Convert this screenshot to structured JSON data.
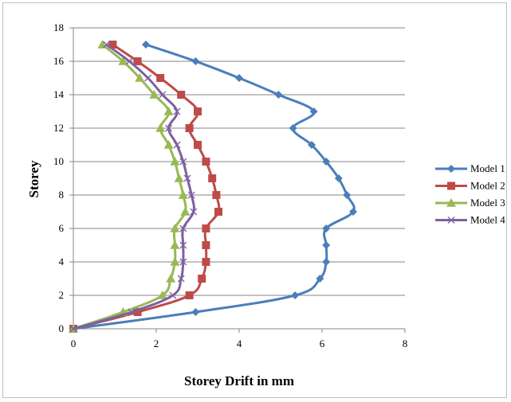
{
  "chart_data": {
    "type": "line",
    "title": "",
    "xlabel": "Storey Drift in mm",
    "ylabel": "Storey",
    "xlim": [
      0,
      8
    ],
    "ylim": [
      0,
      18
    ],
    "xticks": [
      0,
      2,
      4,
      6,
      8
    ],
    "yticks": [
      0,
      2,
      4,
      6,
      8,
      10,
      12,
      14,
      16,
      18
    ],
    "grid": "horizontal",
    "legend_position": "right",
    "series": [
      {
        "name": "Model 1",
        "color": "#4a7ebb",
        "marker": "diamond",
        "points": [
          [
            0,
            0
          ],
          [
            2.95,
            1
          ],
          [
            5.35,
            2
          ],
          [
            5.95,
            3
          ],
          [
            6.1,
            4
          ],
          [
            6.1,
            5
          ],
          [
            6.1,
            6
          ],
          [
            6.75,
            7
          ],
          [
            6.6,
            8
          ],
          [
            6.4,
            9
          ],
          [
            6.1,
            10
          ],
          [
            5.75,
            11
          ],
          [
            5.3,
            12
          ],
          [
            5.8,
            13
          ],
          [
            4.95,
            14
          ],
          [
            4.0,
            15
          ],
          [
            2.95,
            16
          ],
          [
            1.75,
            17
          ]
        ]
      },
      {
        "name": "Model 2",
        "color": "#be4b48",
        "marker": "square",
        "points": [
          [
            0,
            0
          ],
          [
            1.55,
            1
          ],
          [
            2.8,
            2
          ],
          [
            3.1,
            3
          ],
          [
            3.2,
            4
          ],
          [
            3.2,
            5
          ],
          [
            3.2,
            6
          ],
          [
            3.5,
            7
          ],
          [
            3.45,
            8
          ],
          [
            3.35,
            9
          ],
          [
            3.2,
            10
          ],
          [
            3.0,
            11
          ],
          [
            2.8,
            12
          ],
          [
            3.0,
            13
          ],
          [
            2.6,
            14
          ],
          [
            2.1,
            15
          ],
          [
            1.55,
            16
          ],
          [
            0.95,
            17
          ]
        ]
      },
      {
        "name": "Model 3",
        "color": "#98b954",
        "marker": "triangle",
        "points": [
          [
            0,
            0
          ],
          [
            1.2,
            1
          ],
          [
            2.15,
            2
          ],
          [
            2.35,
            3
          ],
          [
            2.45,
            4
          ],
          [
            2.45,
            5
          ],
          [
            2.45,
            6
          ],
          [
            2.7,
            7
          ],
          [
            2.65,
            8
          ],
          [
            2.55,
            9
          ],
          [
            2.45,
            10
          ],
          [
            2.3,
            11
          ],
          [
            2.1,
            12
          ],
          [
            2.3,
            13
          ],
          [
            1.95,
            14
          ],
          [
            1.6,
            15
          ],
          [
            1.2,
            16
          ],
          [
            0.7,
            17
          ]
        ]
      },
      {
        "name": "Model 4",
        "color": "#7d60a0",
        "marker": "x",
        "points": [
          [
            0,
            0
          ],
          [
            1.4,
            1
          ],
          [
            2.4,
            2
          ],
          [
            2.6,
            3
          ],
          [
            2.65,
            4
          ],
          [
            2.65,
            5
          ],
          [
            2.65,
            6
          ],
          [
            2.9,
            7
          ],
          [
            2.85,
            8
          ],
          [
            2.75,
            9
          ],
          [
            2.65,
            10
          ],
          [
            2.5,
            11
          ],
          [
            2.3,
            12
          ],
          [
            2.5,
            13
          ],
          [
            2.15,
            14
          ],
          [
            1.8,
            15
          ],
          [
            1.35,
            16
          ],
          [
            0.8,
            17
          ]
        ]
      }
    ]
  }
}
